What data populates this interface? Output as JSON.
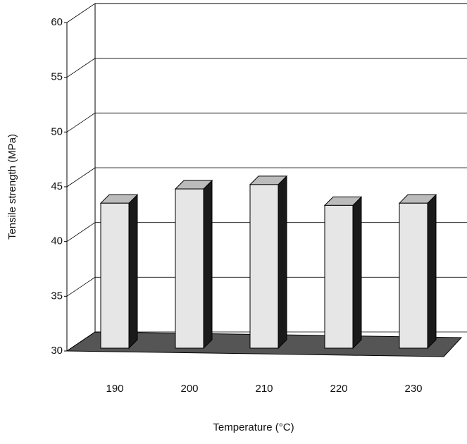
{
  "chart_data": {
    "type": "bar3d",
    "categories": [
      "190",
      "200",
      "210",
      "220",
      "230"
    ],
    "values": [
      43.5,
      44.8,
      45.2,
      43.3,
      43.5
    ],
    "xlabel": "Temperature (°C)",
    "ylabel": "Tensile strength (MPa)",
    "ylim": [
      30,
      60
    ],
    "yticks": [
      30,
      35,
      40,
      45,
      50,
      55,
      60
    ],
    "color": "#e6e6e6",
    "grid": true
  }
}
